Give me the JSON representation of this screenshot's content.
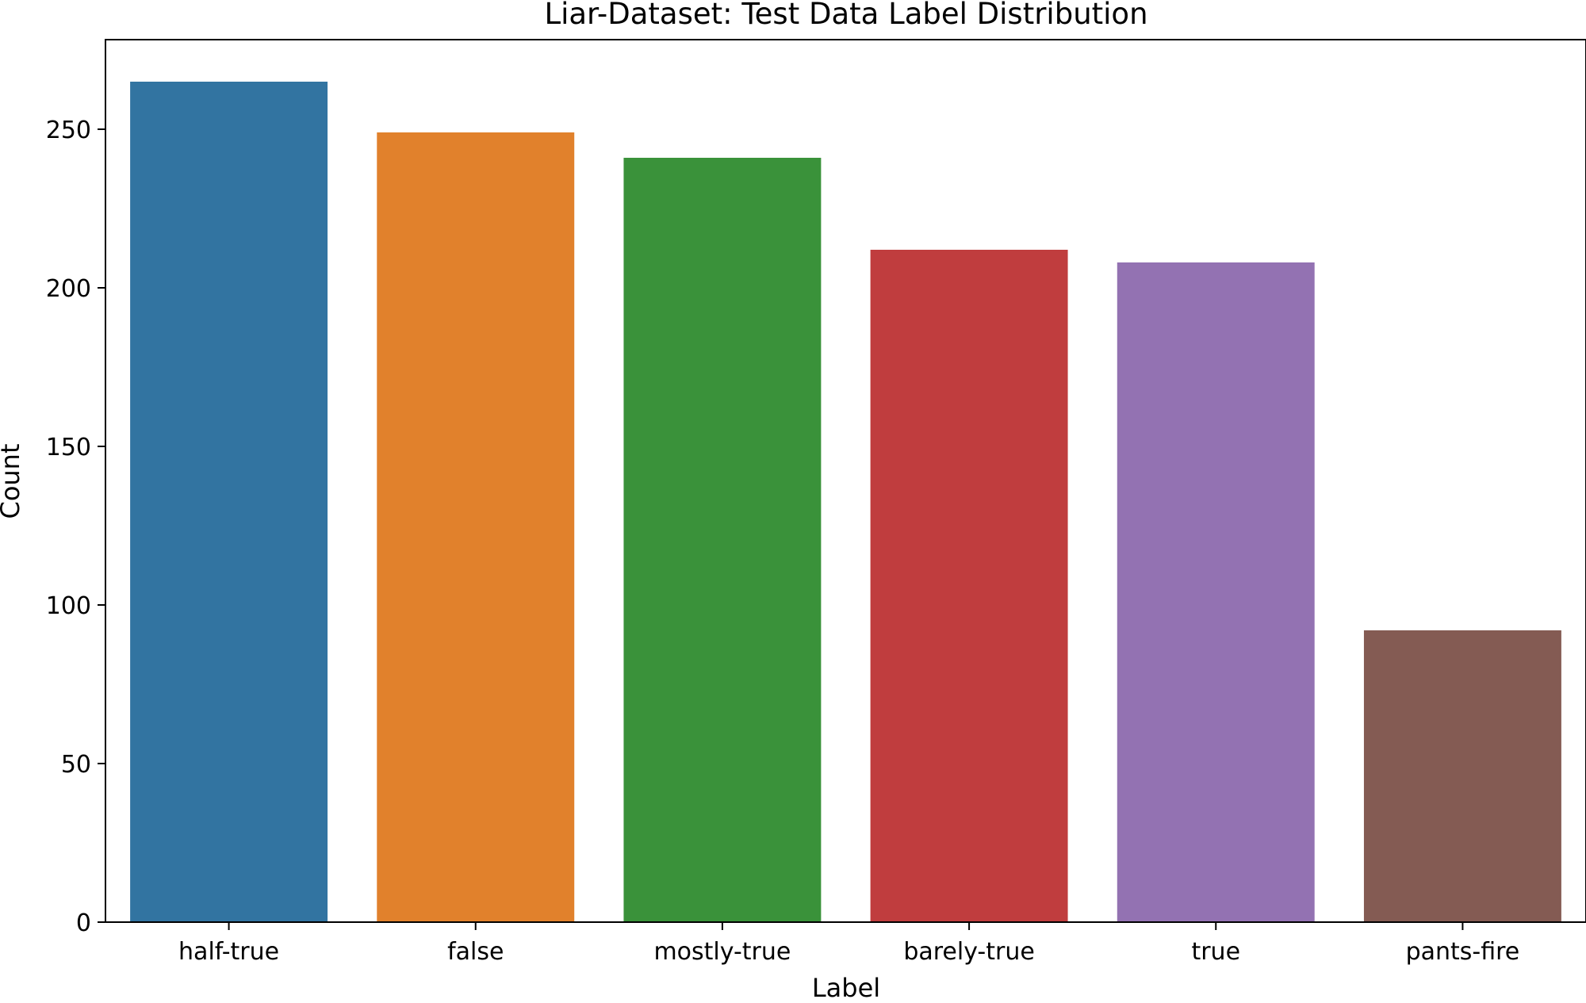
{
  "chart_data": {
    "type": "bar",
    "title": "Liar-Dataset: Test Data Label Distribution",
    "xlabel": "Label",
    "ylabel": "Count",
    "categories": [
      "half-true",
      "false",
      "mostly-true",
      "barely-true",
      "true",
      "pants-fire"
    ],
    "values": [
      265,
      249,
      241,
      212,
      208,
      92
    ],
    "colors": [
      "#3274a1",
      "#e1812c",
      "#3a923a",
      "#c03d3e",
      "#9372b2",
      "#845b53"
    ],
    "ylim": [
      0,
      278.25
    ],
    "yticks": [
      0,
      50,
      100,
      150,
      200,
      250
    ],
    "grid": false,
    "legend": "none"
  }
}
